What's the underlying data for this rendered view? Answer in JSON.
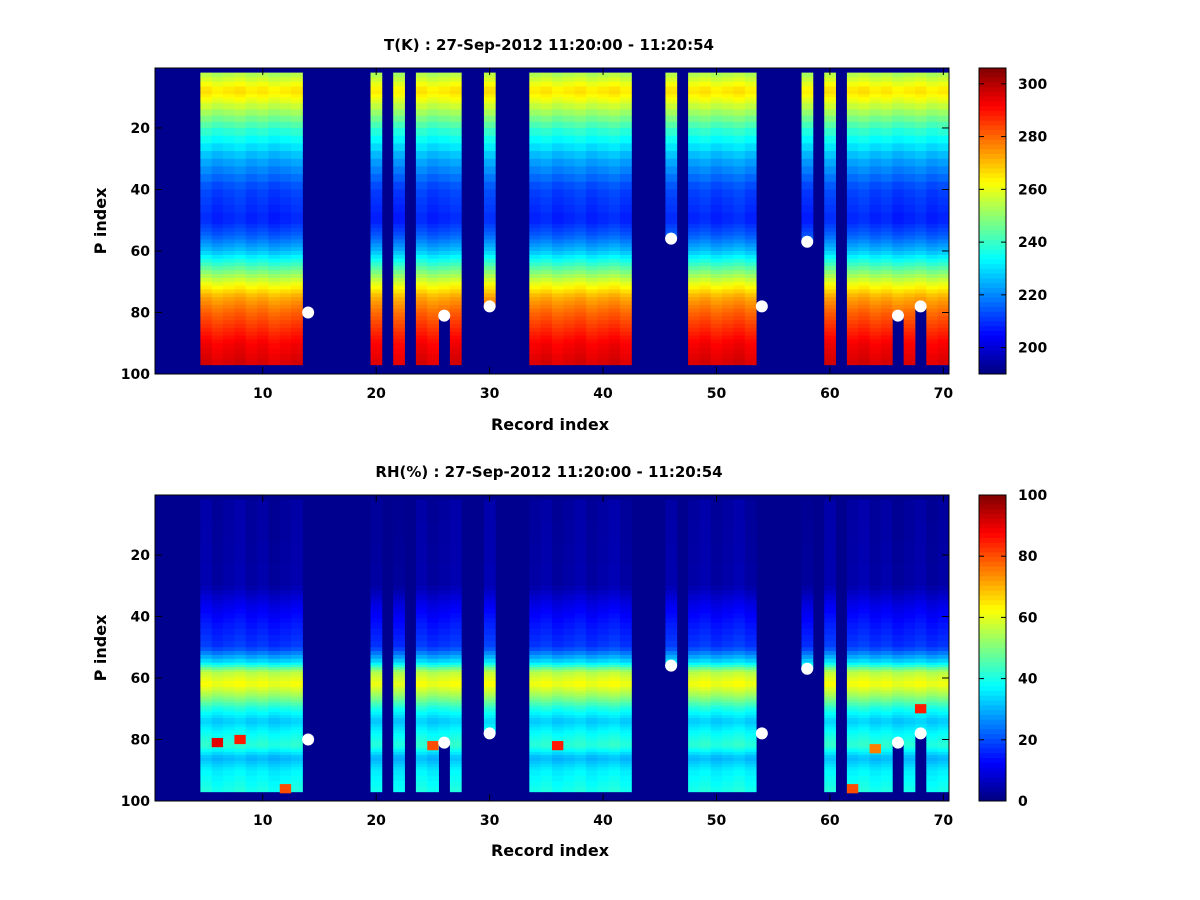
{
  "figure": {
    "background": "#ffffff"
  },
  "chart_data": [
    {
      "type": "heatmap",
      "title": "T(K) : 27-Sep-2012 11:20:00 - 11:20:54",
      "xlabel": "Record index",
      "ylabel": "P index",
      "xlim": [
        0.5,
        70.5
      ],
      "ylim": [
        100,
        0.5
      ],
      "y_reversed": true,
      "x_ticks": [
        10,
        20,
        30,
        40,
        50,
        60,
        70
      ],
      "x_tick_labels": [
        "10",
        "20",
        "30",
        "40",
        "50",
        "60",
        "70"
      ],
      "y_ticks": [
        20,
        40,
        60,
        80,
        100
      ],
      "y_tick_labels": [
        "20",
        "40",
        "60",
        "80",
        "100"
      ],
      "colorbar": {
        "colormap": "jet",
        "range": [
          190,
          306
        ],
        "ticks": [
          200,
          220,
          240,
          260,
          280,
          300
        ],
        "tick_labels": [
          "200",
          "220",
          "240",
          "260",
          "280",
          "300"
        ]
      },
      "background_color": "#00008f",
      "data_columns": [
        [
          5,
          13
        ],
        [
          20,
          20
        ],
        [
          22,
          22
        ],
        [
          24,
          27
        ],
        [
          30,
          30
        ],
        [
          34,
          42
        ],
        [
          46,
          46
        ],
        [
          48,
          53
        ],
        [
          58,
          58
        ],
        [
          60,
          60
        ],
        [
          62,
          70
        ]
      ],
      "column_bottom_p": {
        "5": 97,
        "6": 97,
        "7": 97,
        "8": 97,
        "9": 97,
        "10": 97,
        "11": 97,
        "12": 97,
        "13": 97,
        "20": 97,
        "22": 97,
        "24": 97,
        "25": 97,
        "26": 80,
        "27": 97,
        "30": 78,
        "34": 97,
        "35": 97,
        "36": 97,
        "37": 97,
        "38": 97,
        "39": 97,
        "40": 97,
        "41": 97,
        "42": 97,
        "46": 56,
        "48": 97,
        "49": 97,
        "50": 97,
        "51": 97,
        "52": 97,
        "53": 97,
        "58": 57,
        "60": 97,
        "62": 97,
        "63": 97,
        "64": 97,
        "65": 97,
        "66": 80,
        "67": 97,
        "68": 78,
        "69": 97,
        "70": 97
      },
      "profile_p": [
        2,
        8,
        12,
        20,
        30,
        40,
        50,
        55,
        60,
        65,
        70,
        75,
        80,
        85,
        90,
        97
      ],
      "profile_values": [
        252,
        266,
        258,
        240,
        224,
        212,
        208,
        215,
        226,
        242,
        258,
        272,
        280,
        286,
        292,
        296
      ],
      "markers": [
        {
          "x": 14,
          "y": 80
        },
        {
          "x": 26,
          "y": 81
        },
        {
          "x": 30,
          "y": 78
        },
        {
          "x": 46,
          "y": 56
        },
        {
          "x": 54,
          "y": 78
        },
        {
          "x": 58,
          "y": 57
        },
        {
          "x": 66,
          "y": 81
        },
        {
          "x": 68,
          "y": 78
        }
      ],
      "marker_color": "#ffffff"
    },
    {
      "type": "heatmap",
      "title": "RH(%) : 27-Sep-2012 11:20:00 - 11:20:54",
      "xlabel": "Record index",
      "ylabel": "P index",
      "xlim": [
        0.5,
        70.5
      ],
      "ylim": [
        100,
        0.5
      ],
      "y_reversed": true,
      "x_ticks": [
        10,
        20,
        30,
        40,
        50,
        60,
        70
      ],
      "x_tick_labels": [
        "10",
        "20",
        "30",
        "40",
        "50",
        "60",
        "70"
      ],
      "y_ticks": [
        20,
        40,
        60,
        80,
        100
      ],
      "y_tick_labels": [
        "20",
        "40",
        "60",
        "80",
        "100"
      ],
      "colorbar": {
        "colormap": "jet",
        "range": [
          0,
          100
        ],
        "ticks": [
          0,
          20,
          40,
          60,
          80,
          100
        ],
        "tick_labels": [
          "0",
          "20",
          "40",
          "60",
          "80",
          "100"
        ]
      },
      "background_color": "#00008f",
      "data_columns": [
        [
          5,
          13
        ],
        [
          20,
          20
        ],
        [
          22,
          22
        ],
        [
          24,
          27
        ],
        [
          30,
          30
        ],
        [
          34,
          42
        ],
        [
          46,
          46
        ],
        [
          48,
          53
        ],
        [
          58,
          58
        ],
        [
          60,
          60
        ],
        [
          62,
          70
        ]
      ],
      "column_bottom_p": {
        "5": 97,
        "6": 97,
        "7": 97,
        "8": 97,
        "9": 97,
        "10": 97,
        "11": 97,
        "12": 97,
        "13": 97,
        "20": 97,
        "22": 97,
        "24": 97,
        "25": 97,
        "26": 80,
        "27": 97,
        "30": 78,
        "34": 97,
        "35": 97,
        "36": 97,
        "37": 97,
        "38": 97,
        "39": 97,
        "40": 97,
        "41": 97,
        "42": 97,
        "46": 56,
        "48": 97,
        "49": 97,
        "50": 97,
        "51": 97,
        "52": 97,
        "53": 97,
        "58": 57,
        "60": 97,
        "62": 97,
        "63": 97,
        "64": 97,
        "65": 97,
        "66": 80,
        "67": 97,
        "68": 78,
        "69": 97,
        "70": 97
      },
      "profile_p": [
        2,
        30,
        36,
        42,
        50,
        55,
        58,
        62,
        66,
        70,
        74,
        78,
        82,
        86,
        90,
        97
      ],
      "profile_values": [
        3,
        4,
        10,
        14,
        18,
        35,
        55,
        62,
        52,
        40,
        32,
        38,
        42,
        30,
        36,
        40
      ],
      "hotspots": [
        {
          "x": 6,
          "y": 81,
          "value": 90
        },
        {
          "x": 8,
          "y": 80,
          "value": 85
        },
        {
          "x": 25,
          "y": 82,
          "value": 80
        },
        {
          "x": 36,
          "y": 82,
          "value": 85
        },
        {
          "x": 12,
          "y": 96,
          "value": 80
        },
        {
          "x": 62,
          "y": 96,
          "value": 80
        },
        {
          "x": 68,
          "y": 70,
          "value": 85
        },
        {
          "x": 64,
          "y": 83,
          "value": 75
        }
      ],
      "markers": [
        {
          "x": 14,
          "y": 80
        },
        {
          "x": 26,
          "y": 81
        },
        {
          "x": 30,
          "y": 78
        },
        {
          "x": 46,
          "y": 56
        },
        {
          "x": 54,
          "y": 78
        },
        {
          "x": 58,
          "y": 57
        },
        {
          "x": 66,
          "y": 81
        },
        {
          "x": 68,
          "y": 78
        }
      ],
      "marker_color": "#ffffff"
    }
  ]
}
